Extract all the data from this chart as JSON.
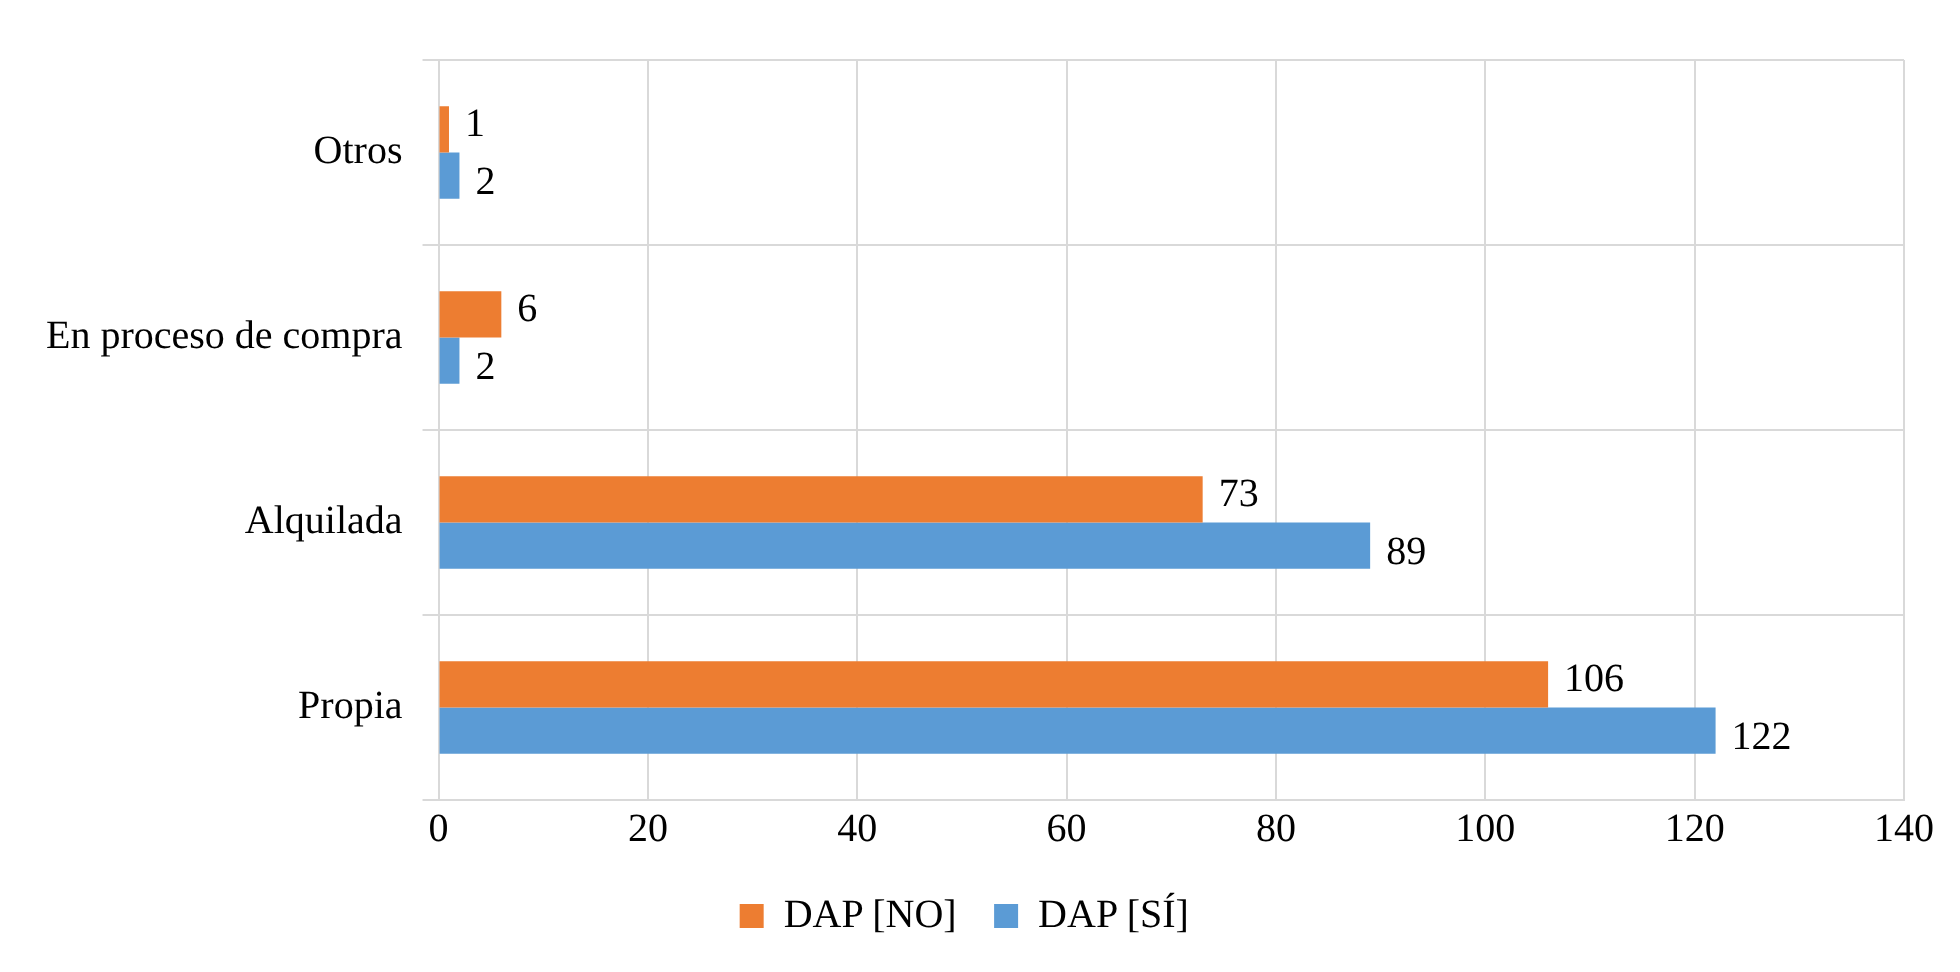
{
  "chart_data": {
    "type": "bar",
    "orientation": "horizontal",
    "categories": [
      "Otros",
      "En proceso de compra",
      "Alquilada",
      "Propia"
    ],
    "series": [
      {
        "name": "DAP [NO]",
        "color": "#ed7d31",
        "values": [
          1,
          6,
          73,
          106
        ]
      },
      {
        "name": "DAP [SÍ]",
        "color": "#5b9bd5",
        "values": [
          2,
          2,
          89,
          122
        ]
      }
    ],
    "xlim": [
      0,
      140
    ],
    "xticks": [
      0,
      20,
      40,
      60,
      80,
      100,
      120,
      140
    ],
    "grid": true,
    "legend": "bottom",
    "data_labels": true
  }
}
